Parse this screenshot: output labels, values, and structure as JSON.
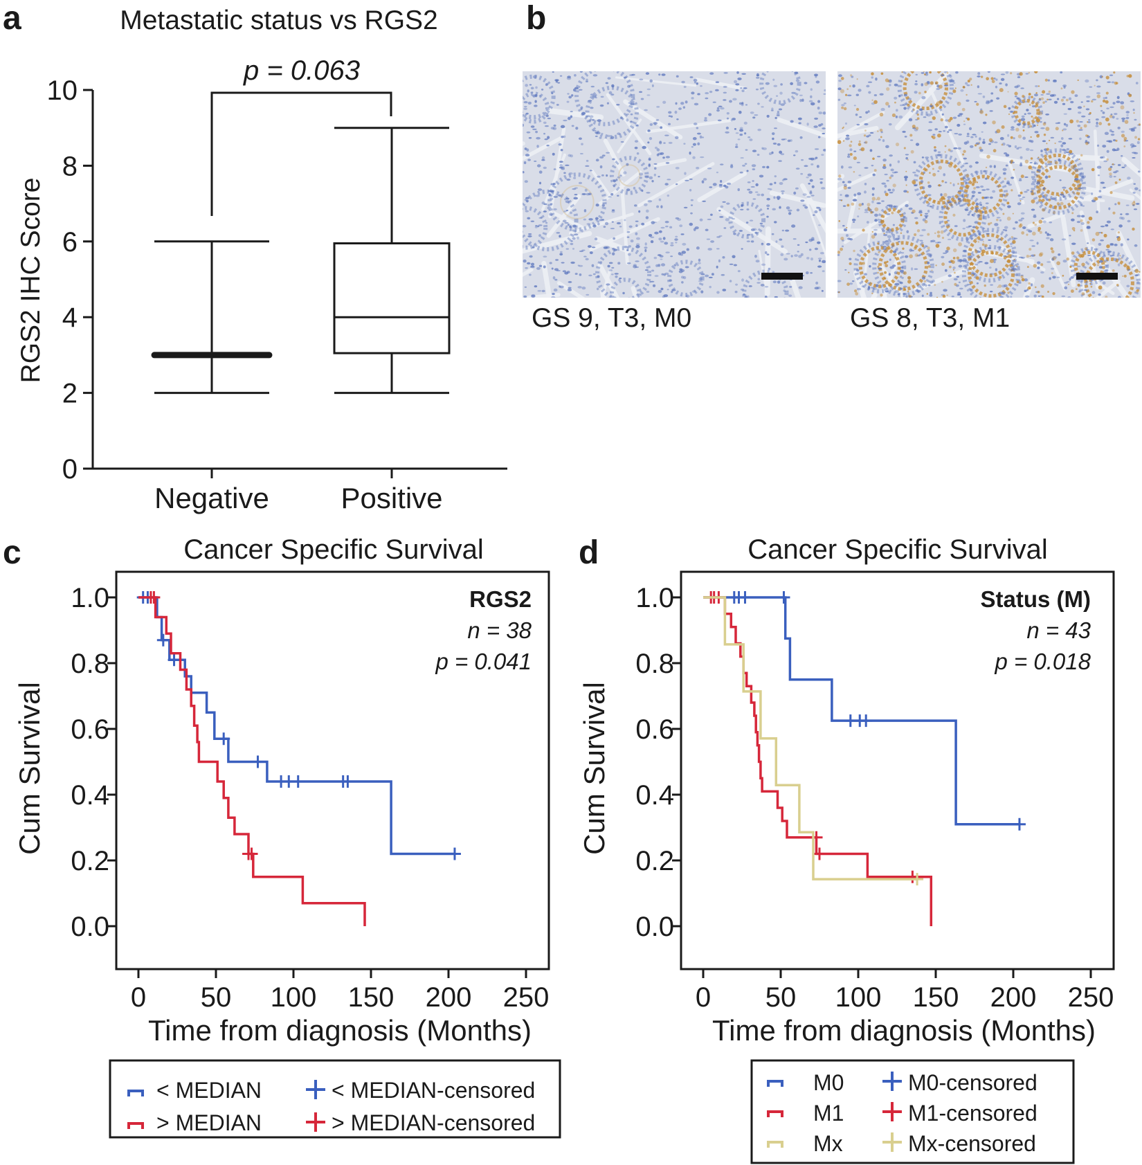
{
  "panels": {
    "a": {
      "letter": "a"
    },
    "b": {
      "letter": "b"
    },
    "c": {
      "letter": "c"
    },
    "d": {
      "letter": "d"
    }
  },
  "micrographs": [
    {
      "caption": "GS 9, T3, M0",
      "stain": "low"
    },
    {
      "caption": "GS 8, T3, M1",
      "stain": "high"
    }
  ],
  "colors": {
    "blue": "#3a5fbe",
    "red": "#d6273a",
    "khaki": "#d9cf8f",
    "ink": "#1a1a1a",
    "tissue_bg": "#d9dde8",
    "nuclei": "#5b75bd",
    "brown": "#c48a33"
  },
  "chart_data": [
    {
      "id": "a",
      "type": "box",
      "title": "Metastatic status vs RGS2",
      "ylabel": "RGS2 IHC Score",
      "ylim": [
        0,
        10
      ],
      "yticks": [
        0,
        2,
        4,
        6,
        8,
        10
      ],
      "categories": [
        "Negative",
        "Positive"
      ],
      "boxes": [
        {
          "name": "Negative",
          "min": 2,
          "q1": 3,
          "median": 3,
          "q3": 3,
          "max": 6
        },
        {
          "name": "Positive",
          "min": 2,
          "q1": 3.05,
          "median": 4,
          "q3": 5.95,
          "max": 9
        }
      ],
      "annotation": {
        "text": "p = 0.063",
        "bracket_y": 9.9
      }
    },
    {
      "id": "c",
      "type": "line",
      "subtype": "kaplan-meier",
      "title": "Cancer Specific Survival",
      "xlabel": "Time from diagnosis (Months)",
      "ylabel": "Cum Survival",
      "xlim": [
        0,
        250
      ],
      "ylim": [
        0,
        1
      ],
      "xticks": [
        0,
        50,
        100,
        150,
        200,
        250
      ],
      "yticks": [
        "0.0",
        "0.2",
        "0.4",
        "0.6",
        "0.8",
        "1.0"
      ],
      "stats": {
        "title": "RGS2",
        "n": "n = 38",
        "p": "p = 0.041"
      },
      "series": [
        {
          "name": "< MEDIAN",
          "censored_name": "< MEDIAN-censored",
          "color": "#3a5fbe",
          "steps": [
            [
              0,
              1.0
            ],
            [
              12,
              1.0
            ],
            [
              12,
              0.94
            ],
            [
              15,
              0.94
            ],
            [
              15,
              0.87
            ],
            [
              20,
              0.87
            ],
            [
              20,
              0.81
            ],
            [
              30,
              0.81
            ],
            [
              30,
              0.76
            ],
            [
              34,
              0.76
            ],
            [
              34,
              0.71
            ],
            [
              44,
              0.71
            ],
            [
              44,
              0.65
            ],
            [
              49,
              0.65
            ],
            [
              49,
              0.57
            ],
            [
              58,
              0.57
            ],
            [
              58,
              0.5
            ],
            [
              83,
              0.5
            ],
            [
              83,
              0.44
            ],
            [
              163,
              0.44
            ],
            [
              163,
              0.22
            ],
            [
              204,
              0.22
            ]
          ],
          "censored": [
            [
              3,
              1.0
            ],
            [
              6,
              1.0
            ],
            [
              16,
              0.87
            ],
            [
              23,
              0.81
            ],
            [
              55,
              0.57
            ],
            [
              77,
              0.5
            ],
            [
              92,
              0.44
            ],
            [
              97,
              0.44
            ],
            [
              103,
              0.44
            ],
            [
              132,
              0.44
            ],
            [
              135,
              0.44
            ],
            [
              204,
              0.22
            ]
          ]
        },
        {
          "name": "> MEDIAN",
          "censored_name": "> MEDIAN-censored",
          "color": "#d6273a",
          "steps": [
            [
              0,
              1.0
            ],
            [
              11,
              1.0
            ],
            [
              11,
              0.94
            ],
            [
              18,
              0.94
            ],
            [
              18,
              0.89
            ],
            [
              21,
              0.89
            ],
            [
              21,
              0.83
            ],
            [
              27,
              0.83
            ],
            [
              27,
              0.78
            ],
            [
              31,
              0.78
            ],
            [
              31,
              0.72
            ],
            [
              34,
              0.72
            ],
            [
              34,
              0.67
            ],
            [
              36,
              0.67
            ],
            [
              36,
              0.61
            ],
            [
              38,
              0.61
            ],
            [
              38,
              0.56
            ],
            [
              39,
              0.56
            ],
            [
              39,
              0.5
            ],
            [
              51,
              0.5
            ],
            [
              51,
              0.44
            ],
            [
              55,
              0.44
            ],
            [
              55,
              0.39
            ],
            [
              58,
              0.39
            ],
            [
              58,
              0.33
            ],
            [
              62,
              0.33
            ],
            [
              62,
              0.28
            ],
            [
              71,
              0.28
            ],
            [
              71,
              0.22
            ],
            [
              74,
              0.22
            ],
            [
              74,
              0.15
            ],
            [
              106,
              0.15
            ],
            [
              106,
              0.07
            ],
            [
              146,
              0.07
            ],
            [
              146,
              0.0
            ]
          ],
          "censored": [
            [
              8,
              1.0
            ],
            [
              10,
              1.0
            ],
            [
              71,
              0.22
            ],
            [
              73,
              0.22
            ]
          ]
        }
      ]
    },
    {
      "id": "d",
      "type": "line",
      "subtype": "kaplan-meier",
      "title": "Cancer Specific Survival",
      "xlabel": "Time from diagnosis (Months)",
      "ylabel": "Cum Survival",
      "xlim": [
        0,
        250
      ],
      "ylim": [
        0,
        1
      ],
      "xticks": [
        0,
        50,
        100,
        150,
        200,
        250
      ],
      "yticks": [
        "0.0",
        "0.2",
        "0.4",
        "0.6",
        "0.8",
        "1.0"
      ],
      "stats": {
        "title": "Status (M)",
        "n": "n = 43",
        "p": "p = 0.018"
      },
      "series": [
        {
          "name": "M0",
          "censored_name": "M0-censored",
          "color": "#3a5fbe",
          "steps": [
            [
              0,
              1.0
            ],
            [
              53,
              1.0
            ],
            [
              53,
              0.875
            ],
            [
              56,
              0.875
            ],
            [
              56,
              0.75
            ],
            [
              83,
              0.75
            ],
            [
              83,
              0.625
            ],
            [
              163,
              0.625
            ],
            [
              163,
              0.31
            ],
            [
              204,
              0.31
            ]
          ],
          "censored": [
            [
              20,
              1.0
            ],
            [
              23,
              1.0
            ],
            [
              27,
              1.0
            ],
            [
              52,
              1.0
            ],
            [
              95,
              0.625
            ],
            [
              101,
              0.625
            ],
            [
              105,
              0.625
            ],
            [
              204,
              0.31
            ]
          ]
        },
        {
          "name": "M1",
          "censored_name": "M1-censored",
          "color": "#d6273a",
          "steps": [
            [
              0,
              1.0
            ],
            [
              14,
              1.0
            ],
            [
              14,
              0.95
            ],
            [
              18,
              0.95
            ],
            [
              18,
              0.91
            ],
            [
              21,
              0.91
            ],
            [
              21,
              0.86
            ],
            [
              24,
              0.86
            ],
            [
              24,
              0.82
            ],
            [
              26,
              0.82
            ],
            [
              26,
              0.77
            ],
            [
              28,
              0.77
            ],
            [
              28,
              0.73
            ],
            [
              31,
              0.73
            ],
            [
              31,
              0.68
            ],
            [
              33,
              0.68
            ],
            [
              33,
              0.64
            ],
            [
              34,
              0.64
            ],
            [
              34,
              0.59
            ],
            [
              35,
              0.59
            ],
            [
              35,
              0.55
            ],
            [
              36,
              0.55
            ],
            [
              36,
              0.5
            ],
            [
              37,
              0.5
            ],
            [
              37,
              0.45
            ],
            [
              38,
              0.45
            ],
            [
              38,
              0.41
            ],
            [
              48,
              0.41
            ],
            [
              48,
              0.36
            ],
            [
              51,
              0.36
            ],
            [
              51,
              0.32
            ],
            [
              54,
              0.32
            ],
            [
              54,
              0.27
            ],
            [
              73,
              0.27
            ],
            [
              73,
              0.22
            ],
            [
              106,
              0.22
            ],
            [
              106,
              0.15
            ],
            [
              147,
              0.15
            ],
            [
              147,
              0.0
            ]
          ],
          "censored": [
            [
              5,
              1.0
            ],
            [
              7,
              1.0
            ],
            [
              10,
              1.0
            ],
            [
              73,
              0.27
            ],
            [
              75,
              0.22
            ],
            [
              135,
              0.15
            ]
          ]
        },
        {
          "name": "Mx",
          "censored_name": "Mx-censored",
          "color": "#d9cf8f",
          "steps": [
            [
              0,
              1.0
            ],
            [
              14,
              1.0
            ],
            [
              14,
              0.857
            ],
            [
              26,
              0.857
            ],
            [
              26,
              0.714
            ],
            [
              37,
              0.714
            ],
            [
              37,
              0.571
            ],
            [
              47,
              0.571
            ],
            [
              47,
              0.429
            ],
            [
              62,
              0.429
            ],
            [
              62,
              0.286
            ],
            [
              71,
              0.286
            ],
            [
              71,
              0.143
            ],
            [
              138,
              0.143
            ]
          ],
          "censored": [
            [
              138,
              0.143
            ]
          ]
        }
      ]
    }
  ]
}
